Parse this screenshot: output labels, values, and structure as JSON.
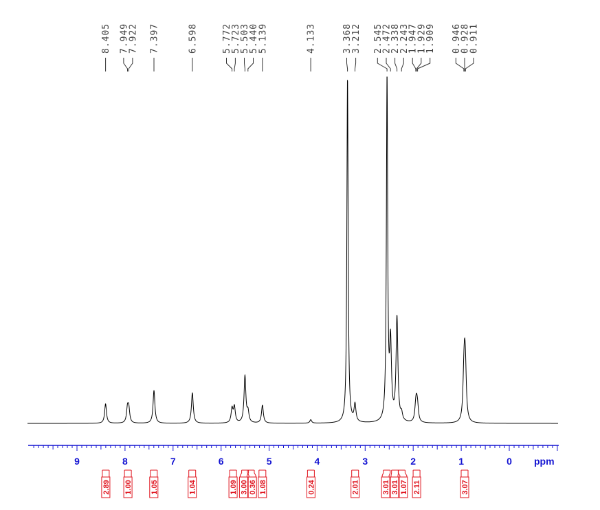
{
  "chart_data": {
    "type": "line",
    "title": "",
    "xlabel": "ppm",
    "ylabel": "",
    "x_axis_reversed": true,
    "xlim": [
      10.0,
      -1.0
    ],
    "ticks": [
      "9",
      "8",
      "7",
      "6",
      "5",
      "4",
      "3",
      "2",
      "1",
      "0"
    ],
    "tick_values": [
      9,
      8,
      7,
      6,
      5,
      4,
      3,
      2,
      1,
      0
    ],
    "peak_labels": [
      "8.405",
      "7.949",
      "7.922",
      "7.397",
      "6.598",
      "5.772",
      "5.723",
      "5.503",
      "5.440",
      "5.139",
      "4.133",
      "3.368",
      "3.212",
      "2.545",
      "2.472",
      "2.338",
      "2.243",
      "1.947",
      "1.929",
      "1.909",
      "0.946",
      "0.928",
      "0.911"
    ],
    "peaks": [
      {
        "ppm": 8.405,
        "height": 0.056
      },
      {
        "ppm": 7.949,
        "height": 0.04
      },
      {
        "ppm": 7.922,
        "height": 0.04
      },
      {
        "ppm": 7.397,
        "height": 0.095
      },
      {
        "ppm": 6.598,
        "height": 0.088
      },
      {
        "ppm": 5.772,
        "height": 0.04
      },
      {
        "ppm": 5.723,
        "height": 0.045
      },
      {
        "ppm": 5.503,
        "height": 0.135
      },
      {
        "ppm": 5.44,
        "height": 0.03
      },
      {
        "ppm": 5.139,
        "height": 0.052
      },
      {
        "ppm": 4.133,
        "height": 0.01
      },
      {
        "ppm": 3.368,
        "height": 1.0
      },
      {
        "ppm": 3.212,
        "height": 0.05
      },
      {
        "ppm": 2.545,
        "height": 1.0
      },
      {
        "ppm": 2.472,
        "height": 0.218
      },
      {
        "ppm": 2.338,
        "height": 0.3
      },
      {
        "ppm": 2.243,
        "height": 0.02
      },
      {
        "ppm": 1.947,
        "height": 0.04
      },
      {
        "ppm": 1.929,
        "height": 0.04
      },
      {
        "ppm": 1.909,
        "height": 0.035
      },
      {
        "ppm": 0.946,
        "height": 0.1
      },
      {
        "ppm": 0.928,
        "height": 0.12
      },
      {
        "ppm": 0.911,
        "height": 0.1
      }
    ],
    "integrals": [
      {
        "ppm": 8.4,
        "value": "2.89"
      },
      {
        "ppm": 7.94,
        "value": "1.00"
      },
      {
        "ppm": 7.4,
        "value": "1.05"
      },
      {
        "ppm": 6.6,
        "value": "1.04"
      },
      {
        "ppm": 5.75,
        "value": "1.09"
      },
      {
        "ppm": 5.5,
        "value": "3.00"
      },
      {
        "ppm": 5.38,
        "value": "0.36"
      },
      {
        "ppm": 5.14,
        "value": "1.08"
      },
      {
        "ppm": 4.13,
        "value": "0.24"
      },
      {
        "ppm": 3.21,
        "value": "2.01"
      },
      {
        "ppm": 2.55,
        "value": "3.01"
      },
      {
        "ppm": 2.38,
        "value": "3.01"
      },
      {
        "ppm": 2.24,
        "value": "1.07"
      },
      {
        "ppm": 1.93,
        "value": "2.11"
      },
      {
        "ppm": 0.93,
        "value": "3.07"
      }
    ],
    "grid": false,
    "colors": {
      "spectrum": "#000000",
      "peak_labels": "#444444",
      "axis": "#1414d2",
      "integrals": "#e0141e"
    }
  }
}
